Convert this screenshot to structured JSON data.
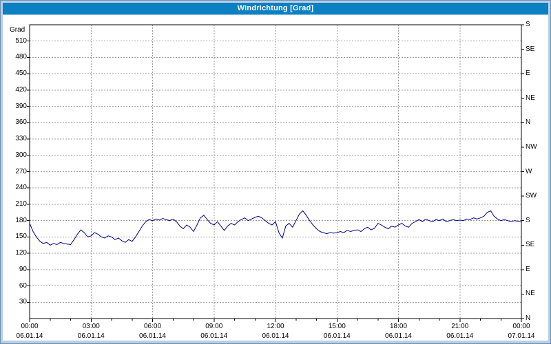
{
  "title": "Windrichtung [Grad]",
  "colors": {
    "titlebar": "#0b80c2",
    "frame_background": "#b9cfe4",
    "plot_background": "#ffffff",
    "grid": "#9c9c9c",
    "line": "#00008b"
  },
  "y_axis": {
    "label": "Grad",
    "min": 0,
    "max": 540,
    "ticks": [
      30,
      60,
      90,
      120,
      150,
      180,
      210,
      240,
      270,
      300,
      330,
      360,
      390,
      420,
      450,
      480,
      510
    ]
  },
  "right_axis": {
    "labels_top_to_bottom": [
      "S",
      "SE",
      "E",
      "NE",
      "N",
      "NW",
      "W",
      "SW",
      "S",
      "SE",
      "E",
      "NE",
      "N"
    ],
    "step_degrees": 45
  },
  "x_axis": {
    "ticks": [
      {
        "time": "00:00",
        "date": "06.01.14"
      },
      {
        "time": "03:00",
        "date": "06.01.14"
      },
      {
        "time": "06:00",
        "date": "06.01.14"
      },
      {
        "time": "09:00",
        "date": "06.01.14"
      },
      {
        "time": "12:00",
        "date": "06.01.14"
      },
      {
        "time": "15:00",
        "date": "06.01.14"
      },
      {
        "time": "18:00",
        "date": "06.01.14"
      },
      {
        "time": "21:00",
        "date": "06.01.14"
      },
      {
        "time": "00:00",
        "date": "07.01.14"
      }
    ]
  },
  "chart_data": {
    "type": "line",
    "title": "Windrichtung [Grad]",
    "ylabel": "Grad",
    "ylim": [
      0,
      540
    ],
    "x_range_hours": [
      0,
      24
    ],
    "x_interval_minutes": 10,
    "grid": true,
    "legend": false,
    "line_color": "#00008b",
    "values": [
      175,
      160,
      150,
      142,
      138,
      140,
      135,
      138,
      136,
      140,
      138,
      137,
      136,
      145,
      155,
      163,
      158,
      150,
      152,
      158,
      155,
      150,
      148,
      152,
      150,
      145,
      148,
      143,
      140,
      145,
      142,
      150,
      160,
      170,
      178,
      182,
      180,
      183,
      181,
      184,
      182,
      180,
      183,
      178,
      170,
      165,
      172,
      168,
      160,
      172,
      185,
      190,
      182,
      175,
      172,
      178,
      170,
      162,
      170,
      175,
      172,
      178,
      182,
      185,
      180,
      183,
      186,
      188,
      185,
      180,
      175,
      172,
      178,
      158,
      148,
      170,
      175,
      168,
      180,
      192,
      198,
      190,
      180,
      172,
      165,
      160,
      158,
      156,
      158,
      157,
      158,
      160,
      158,
      162,
      160,
      162,
      163,
      160,
      165,
      168,
      163,
      166,
      175,
      172,
      168,
      165,
      170,
      168,
      172,
      175,
      170,
      168,
      175,
      178,
      182,
      178,
      183,
      180,
      178,
      182,
      180,
      183,
      178,
      180,
      182,
      180,
      181,
      180,
      183,
      182,
      185,
      183,
      185,
      188,
      195,
      198,
      188,
      183,
      180,
      182,
      180,
      178,
      180,
      179,
      178
    ]
  }
}
